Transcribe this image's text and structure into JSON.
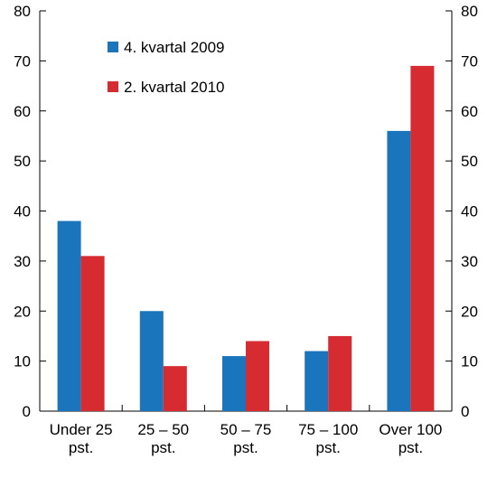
{
  "chart_data": {
    "type": "bar",
    "categories": [
      [
        "Under 25",
        "pst."
      ],
      [
        "25 – 50",
        "pst."
      ],
      [
        "50 – 75",
        "pst."
      ],
      [
        "75 – 100",
        "pst."
      ],
      [
        "Over 100",
        "pst."
      ]
    ],
    "series": [
      {
        "name": "4. kvartal 2009",
        "color": "#1a75bc",
        "values": [
          38,
          20,
          11,
          12,
          56
        ]
      },
      {
        "name": "2. kvartal 2010",
        "color": "#d52b31",
        "values": [
          31,
          9,
          14,
          15,
          69
        ]
      }
    ],
    "ylim": [
      0,
      80
    ],
    "yticks": [
      0,
      10,
      20,
      30,
      40,
      50,
      60,
      70,
      80
    ],
    "title": "",
    "xlabel": "",
    "ylabel": "",
    "legend": "top-left",
    "grid": false,
    "dual_y_axis": true
  }
}
